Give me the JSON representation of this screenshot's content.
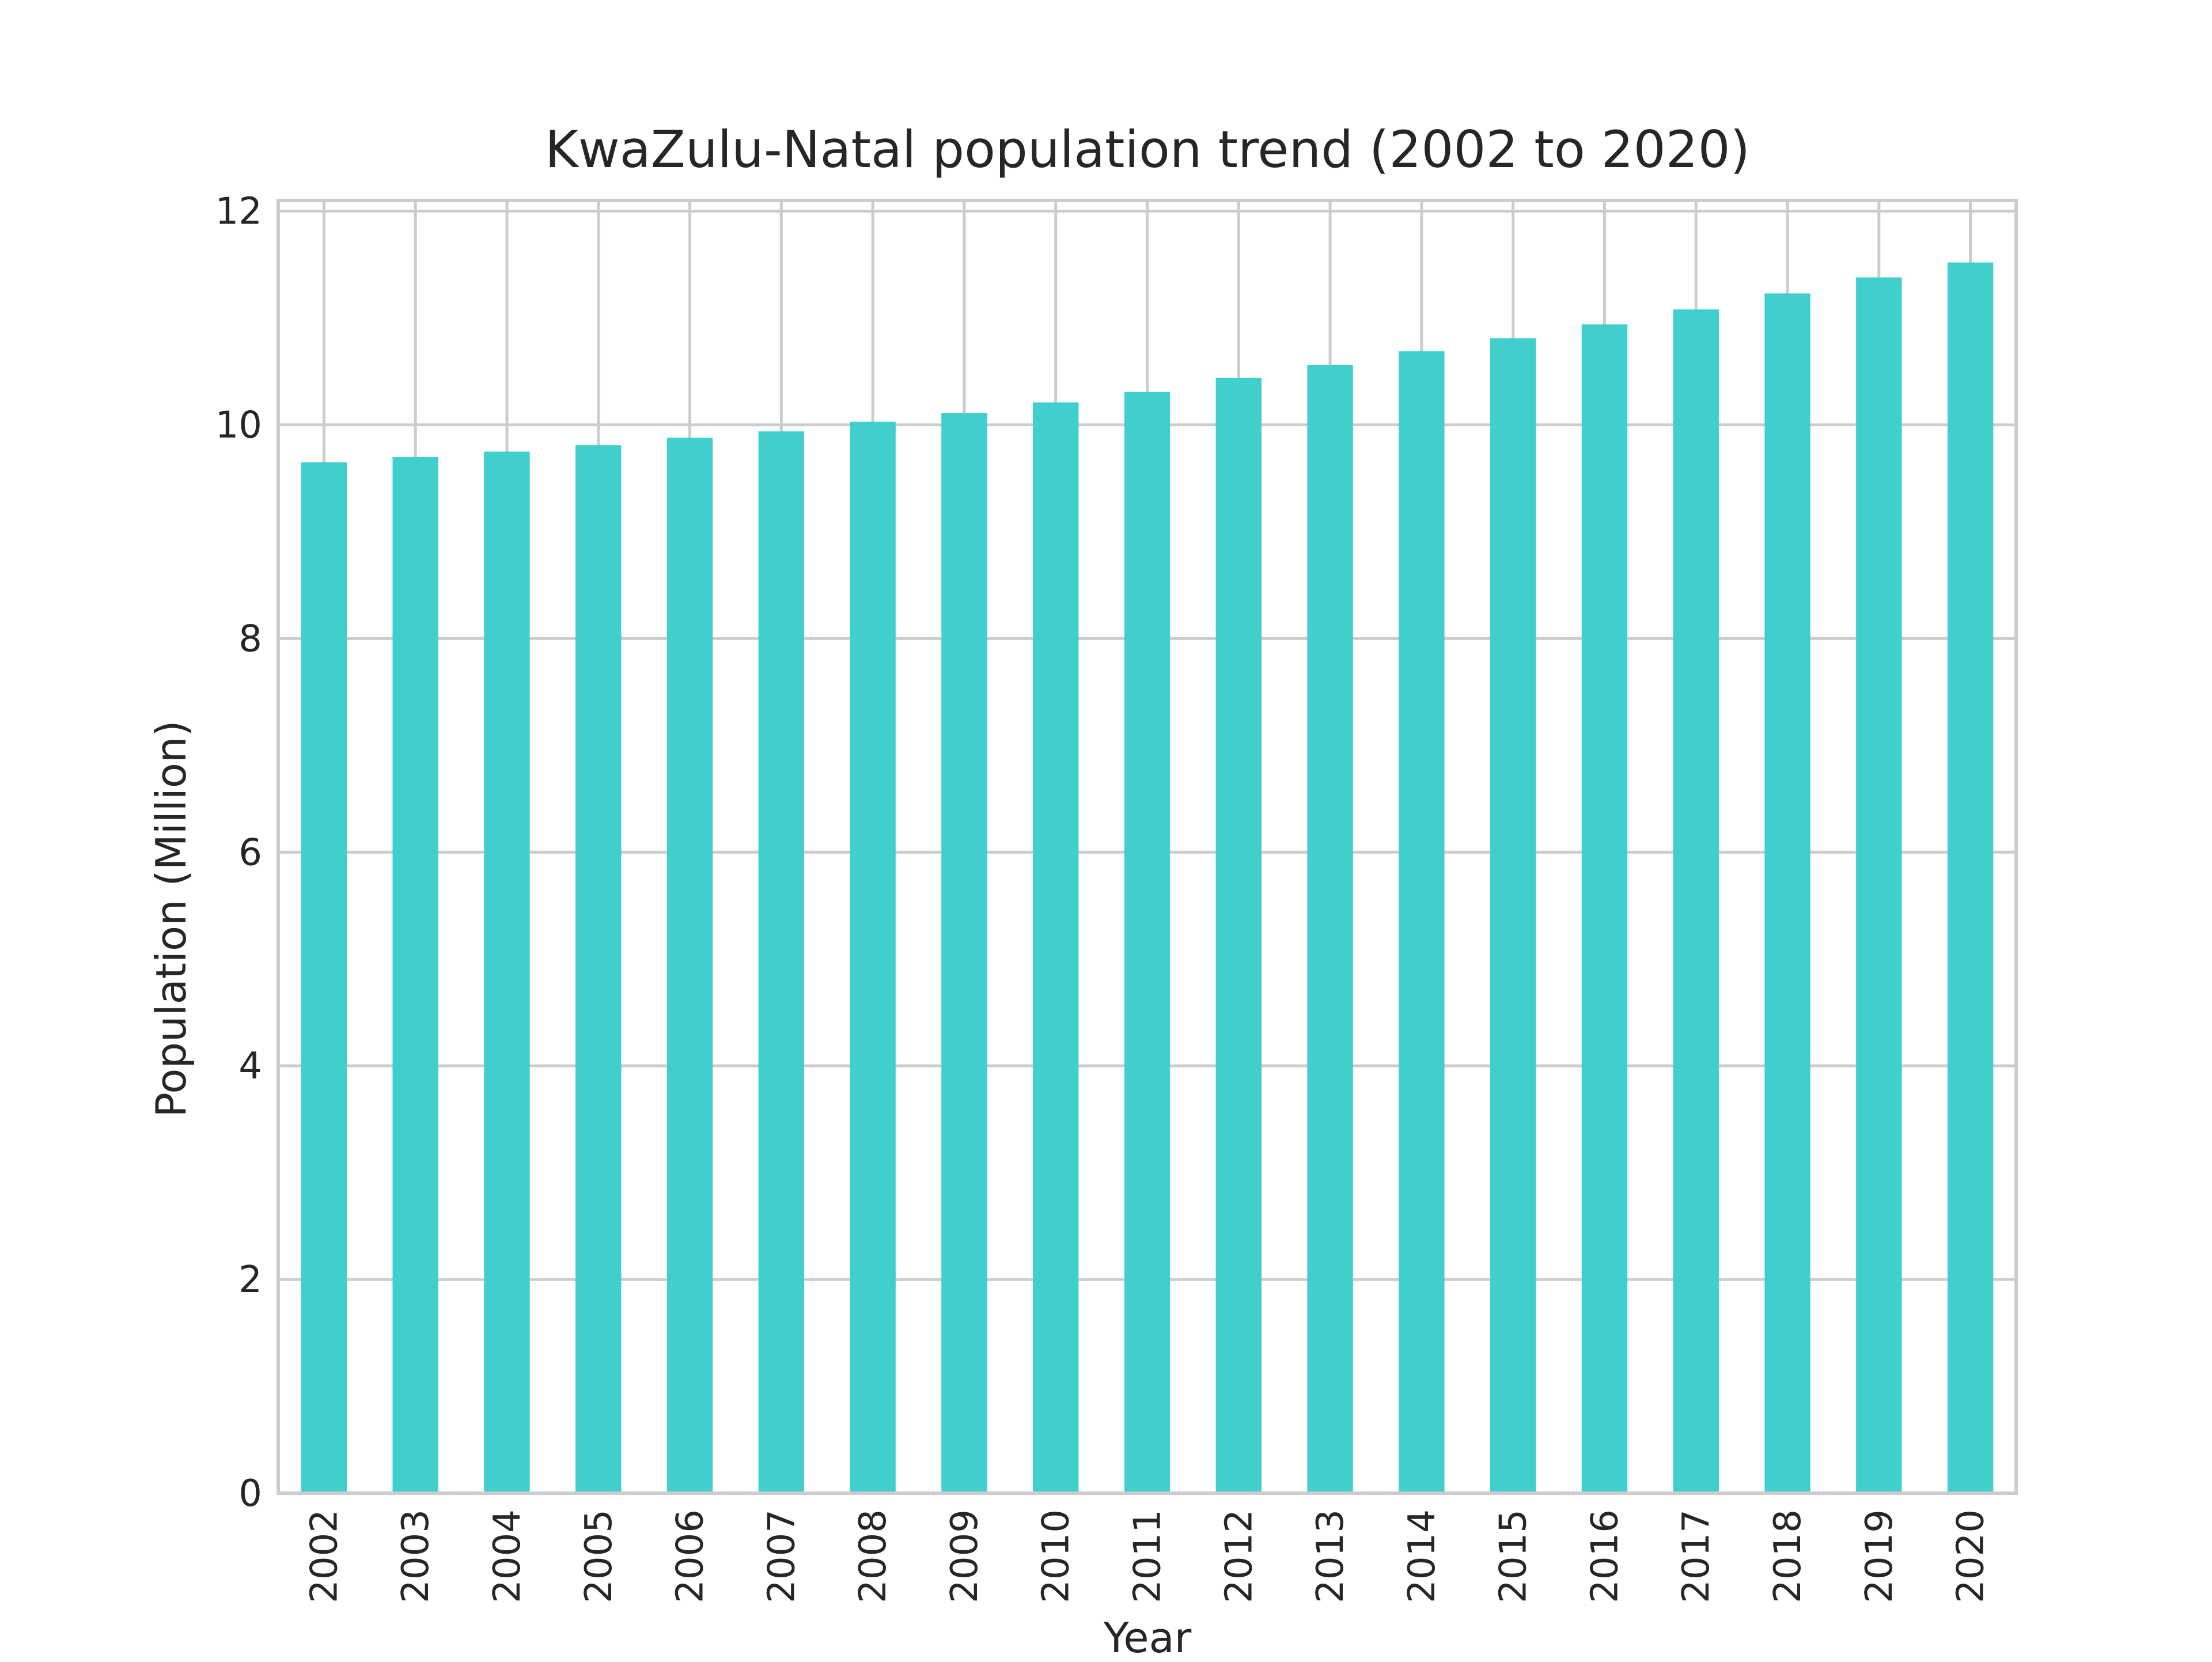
{
  "chart_data": {
    "type": "bar",
    "title": "KwaZulu-Natal population trend (2002 to 2020)",
    "xlabel": "Year",
    "ylabel": "Population (Million)",
    "categories": [
      "2002",
      "2003",
      "2004",
      "2005",
      "2006",
      "2007",
      "2008",
      "2009",
      "2010",
      "2011",
      "2012",
      "2013",
      "2014",
      "2015",
      "2016",
      "2017",
      "2018",
      "2019",
      "2020"
    ],
    "values": [
      9.65,
      9.7,
      9.75,
      9.81,
      9.88,
      9.94,
      10.03,
      10.11,
      10.21,
      10.31,
      10.44,
      10.56,
      10.69,
      10.81,
      10.94,
      11.08,
      11.23,
      11.38,
      11.52
    ],
    "yticks": [
      "0",
      "2",
      "4",
      "6",
      "8",
      "10",
      "12"
    ],
    "ylim": [
      0,
      12.1
    ],
    "grid": true,
    "bar_color": "#40CFCC",
    "grid_color": "#cccccc"
  }
}
